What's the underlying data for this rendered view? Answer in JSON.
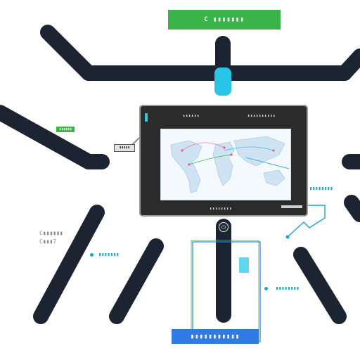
{
  "colors": {
    "background": "#ffffff",
    "bar": "#1b2430",
    "accent_cyan": "#29c4e6",
    "accent_green": "#3bb54a",
    "accent_blue": "#2f7ae5",
    "monitor_frame": "#2b2b2b"
  },
  "header": {
    "banner_label": "C ▮▮▮▮▮▮▮"
  },
  "footer": {
    "banner_label": "▮▮▮▮▮▮▮▮▮▮▮"
  },
  "left_panel": {
    "chip_label": "▮▮▮▮▮▮",
    "small_chip_label": "▮▮▮▮▮",
    "gray_label_line1": "C▮▮▮▮▮▮",
    "gray_label_line2": "C▮▮▮7",
    "cyan_label": "▮▮▮▮▮▮▮"
  },
  "right_panel": {
    "cyan_label": "▮▮▮▮▮▮▮▮",
    "teal_label": "▮▮▮▮▮▮▮▮"
  },
  "monitor": {
    "title": "▮▮▮▮▮▮",
    "status": "▮▮▮▮▮▮▮▮▮▮",
    "caption": "▮▮▮▮▮▮▮▮",
    "power_symbol": "⏻"
  }
}
